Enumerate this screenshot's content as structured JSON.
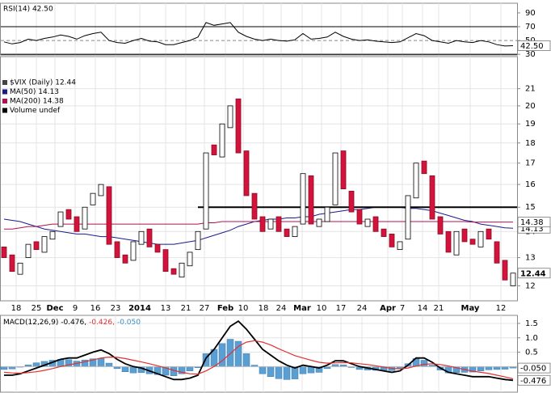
{
  "chart_data": [
    {
      "type": "line",
      "title": "RSI(14) 42.50",
      "ylim": [
        29,
        104
      ],
      "yticks": [
        90,
        70,
        50,
        30
      ],
      "reference_lines": [
        70,
        30
      ],
      "dashed_line": 50,
      "series": [
        {
          "color": "#000000",
          "values": [
            48,
            45,
            47,
            52,
            50,
            53,
            55,
            58,
            56,
            52,
            57,
            60,
            62,
            50,
            47,
            46,
            50,
            53,
            49,
            48,
            44,
            44,
            47,
            50,
            55,
            76,
            72,
            74,
            76,
            62,
            56,
            52,
            50,
            52,
            50,
            49,
            51,
            60,
            52,
            53,
            55,
            62,
            56,
            52,
            50,
            51,
            49,
            48,
            47,
            48,
            54,
            60,
            57,
            50,
            48,
            46,
            50,
            48,
            47,
            50,
            48,
            44,
            42,
            42.5
          ]
        }
      ],
      "current": {
        "value": 42.5,
        "label": "42.50"
      }
    },
    {
      "type": "candlestick",
      "scale": "log",
      "grid": true,
      "legend": [
        {
          "text": "$VIX (Daily) 12.44",
          "color": "#000000"
        },
        {
          "text": "MA(50) 14.13",
          "color": "#1a1a8c"
        },
        {
          "text": "MA(200) 14.38",
          "color": "#b01050"
        },
        {
          "text": "Volume undef",
          "color": "#000000"
        }
      ],
      "ylim": [
        11.5,
        23
      ],
      "yticks": [
        12,
        13,
        14,
        15,
        16,
        17,
        18,
        19,
        20,
        21
      ],
      "xlim": [
        -0.5,
        63.5
      ],
      "xticks": [
        {
          "value": 1.5,
          "label": "18"
        },
        {
          "value": 4,
          "label": "25"
        },
        {
          "value": 6.3,
          "label": "Dec"
        },
        {
          "value": 8.8,
          "label": "9"
        },
        {
          "value": 11.3,
          "label": "16"
        },
        {
          "value": 13.8,
          "label": "23"
        },
        {
          "value": 16.8,
          "label": "2014"
        },
        {
          "value": 20,
          "label": "13"
        },
        {
          "value": 22.5,
          "label": "21"
        },
        {
          "value": 24.8,
          "label": "27"
        },
        {
          "value": 27.4,
          "label": "Feb"
        },
        {
          "value": 29.6,
          "label": "10"
        },
        {
          "value": 32.1,
          "label": "18"
        },
        {
          "value": 34.3,
          "label": "24"
        },
        {
          "value": 36.9,
          "label": "Mar"
        },
        {
          "value": 39.3,
          "label": "10"
        },
        {
          "value": 41.7,
          "label": "17"
        },
        {
          "value": 44.3,
          "label": "24"
        },
        {
          "value": 47.5,
          "label": "Apr"
        },
        {
          "value": 49.3,
          "label": "7"
        },
        {
          "value": 51.8,
          "label": "14"
        },
        {
          "value": 53.8,
          "label": "21"
        },
        {
          "value": 57.7,
          "label": "May"
        },
        {
          "value": 61.5,
          "label": "12"
        }
      ],
      "open": [
        13.4,
        13.1,
        12.4,
        13.0,
        13.6,
        13.2,
        13.7,
        14.2,
        14.9,
        14.6,
        14.1,
        15.1,
        15.5,
        15.9,
        13.6,
        13.1,
        12.9,
        13.5,
        14.1,
        13.5,
        13.3,
        12.6,
        12.3,
        12.7,
        13.3,
        14.1,
        17.9,
        17.3,
        18.8,
        20.4,
        17.6,
        15.6,
        14.6,
        14.1,
        14.6,
        14.1,
        13.8,
        14.3,
        16.4,
        14.2,
        14.4,
        15.1,
        17.6,
        15.7,
        14.9,
        14.2,
        14.6,
        14.1,
        13.9,
        13.3,
        13.7,
        15.4,
        17.1,
        16.4,
        14.6,
        14.0,
        13.1,
        14.1,
        13.7,
        13.4,
        14.1,
        13.6,
        12.9,
        12.0
      ],
      "close": [
        13.0,
        12.5,
        12.8,
        13.5,
        13.3,
        13.8,
        14.0,
        14.8,
        14.5,
        14.0,
        15.0,
        15.6,
        16.0,
        13.5,
        13.0,
        12.8,
        13.6,
        14.0,
        13.4,
        13.2,
        12.5,
        12.4,
        12.8,
        13.2,
        14.0,
        17.5,
        17.4,
        19.0,
        20.0,
        17.5,
        15.5,
        14.5,
        14.0,
        14.5,
        14.0,
        13.8,
        14.2,
        16.5,
        14.3,
        14.5,
        15.0,
        17.5,
        15.8,
        14.8,
        14.3,
        14.5,
        14.0,
        13.8,
        13.4,
        13.6,
        15.5,
        17.0,
        16.5,
        14.5,
        13.9,
        13.2,
        14.0,
        13.6,
        13.5,
        14.0,
        13.7,
        12.8,
        12.2,
        12.44
      ],
      "up_color": "#ffffff",
      "down_color": "#d2143c",
      "series": [
        {
          "color": "#1a1a8c",
          "values": [
            14.5,
            14.45,
            14.4,
            14.3,
            14.2,
            14.1,
            14.05,
            14.0,
            13.95,
            13.9,
            13.9,
            13.85,
            13.8,
            13.8,
            13.75,
            13.7,
            13.65,
            13.6,
            13.55,
            13.5,
            13.5,
            13.5,
            13.55,
            13.6,
            13.65,
            13.75,
            13.85,
            13.95,
            14.05,
            14.2,
            14.3,
            14.4,
            14.45,
            14.5,
            14.5,
            14.55,
            14.55,
            14.6,
            14.6,
            14.7,
            14.75,
            14.8,
            14.85,
            14.9,
            14.9,
            14.95,
            15.0,
            15.0,
            15.0,
            15.0,
            14.95,
            14.95,
            14.9,
            14.85,
            14.75,
            14.65,
            14.55,
            14.45,
            14.4,
            14.3,
            14.25,
            14.2,
            14.15,
            14.13
          ]
        },
        {
          "color": "#b01050",
          "values": [
            14.1,
            14.1,
            14.15,
            14.2,
            14.2,
            14.25,
            14.3,
            14.3,
            14.3,
            14.3,
            14.3,
            14.3,
            14.3,
            14.3,
            14.3,
            14.3,
            14.3,
            14.3,
            14.3,
            14.3,
            14.3,
            14.3,
            14.3,
            14.3,
            14.3,
            14.35,
            14.35,
            14.4,
            14.4,
            14.4,
            14.4,
            14.4,
            14.4,
            14.4,
            14.4,
            14.4,
            14.4,
            14.4,
            14.4,
            14.4,
            14.4,
            14.4,
            14.4,
            14.4,
            14.4,
            14.4,
            14.4,
            14.4,
            14.4,
            14.4,
            14.4,
            14.4,
            14.4,
            14.4,
            14.4,
            14.4,
            14.4,
            14.4,
            14.38,
            14.38,
            14.38,
            14.38,
            14.38,
            14.38
          ]
        }
      ],
      "hline": {
        "value": 15,
        "from": 24
      }
    },
    {
      "type": "macd",
      "title_parts": [
        {
          "text": "MACD(12,26,9) -0.476,",
          "color": "#000000"
        },
        {
          "text": "-0.426,",
          "color": "#e03030"
        },
        {
          "text": "-0.050",
          "color": "#3a8fc8"
        }
      ],
      "ylim": [
        -0.89,
        1.78
      ],
      "yticks": [
        0.5,
        {
          "value": 1,
          "label": "1.0"
        },
        1.5
      ],
      "series": [
        {
          "color": "#000000",
          "values": [
            -0.3,
            -0.3,
            -0.25,
            -0.15,
            -0.05,
            0.05,
            0.15,
            0.25,
            0.3,
            0.3,
            0.4,
            0.5,
            0.58,
            0.45,
            0.25,
            0.1,
            0.0,
            -0.05,
            -0.15,
            -0.25,
            -0.35,
            -0.45,
            -0.45,
            -0.4,
            -0.3,
            0.3,
            0.6,
            1.0,
            1.4,
            1.58,
            1.3,
            0.95,
            0.6,
            0.4,
            0.2,
            0.05,
            -0.05,
            0.05,
            0.0,
            -0.05,
            0.05,
            0.2,
            0.2,
            0.1,
            0.0,
            -0.05,
            -0.1,
            -0.15,
            -0.2,
            -0.15,
            0.05,
            0.3,
            0.3,
            0.15,
            -0.05,
            -0.2,
            -0.25,
            -0.3,
            -0.35,
            -0.35,
            -0.35,
            -0.4,
            -0.45,
            -0.476
          ]
        },
        {
          "color": "#e03030",
          "values": [
            -0.2,
            -0.22,
            -0.23,
            -0.21,
            -0.18,
            -0.13,
            -0.07,
            0.0,
            0.06,
            0.11,
            0.17,
            0.23,
            0.3,
            0.33,
            0.32,
            0.28,
            0.22,
            0.16,
            0.1,
            0.03,
            -0.05,
            -0.13,
            -0.2,
            -0.25,
            -0.26,
            -0.15,
            0.0,
            0.2,
            0.45,
            0.7,
            0.85,
            0.9,
            0.85,
            0.75,
            0.62,
            0.5,
            0.38,
            0.3,
            0.22,
            0.15,
            0.12,
            0.13,
            0.14,
            0.13,
            0.1,
            0.07,
            0.03,
            -0.02,
            -0.06,
            -0.08,
            -0.05,
            0.02,
            0.08,
            0.1,
            0.07,
            0.02,
            -0.04,
            -0.1,
            -0.16,
            -0.2,
            -0.24,
            -0.3,
            -0.36,
            -0.426
          ]
        }
      ],
      "histogram": {
        "color": "#5a9fd4",
        "values": [
          -0.1,
          -0.08,
          -0.02,
          0.06,
          0.13,
          0.18,
          0.22,
          0.25,
          0.24,
          0.19,
          0.23,
          0.27,
          0.28,
          0.12,
          -0.07,
          -0.18,
          -0.22,
          -0.21,
          -0.25,
          -0.28,
          -0.3,
          -0.32,
          -0.25,
          -0.15,
          -0.04,
          0.45,
          0.6,
          0.8,
          0.95,
          0.88,
          0.45,
          0.05,
          -0.25,
          -0.35,
          -0.42,
          -0.45,
          -0.43,
          -0.25,
          -0.22,
          -0.2,
          -0.07,
          0.07,
          0.06,
          -0.03,
          -0.1,
          -0.12,
          -0.13,
          -0.13,
          -0.14,
          -0.07,
          0.1,
          0.28,
          0.22,
          0.05,
          -0.12,
          -0.22,
          -0.21,
          -0.2,
          -0.19,
          -0.15,
          -0.11,
          -0.1,
          -0.09,
          -0.05
        ]
      },
      "current": {
        "value": -0.05,
        "label": "-0.050"
      }
    }
  ]
}
